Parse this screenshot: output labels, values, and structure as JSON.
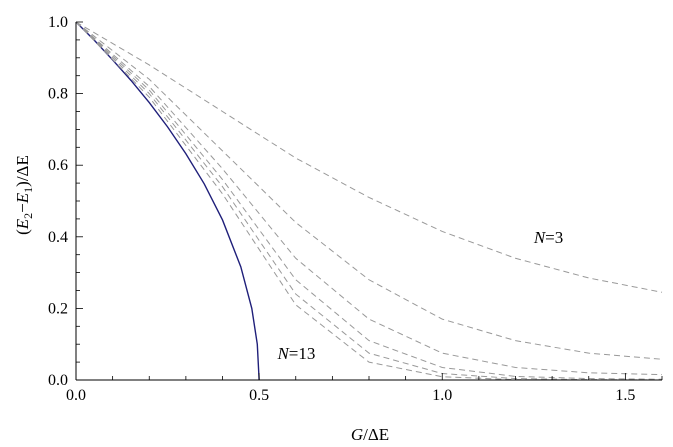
{
  "chart_data": {
    "type": "line",
    "title": "",
    "xlabel": {
      "var": "G",
      "rest": "/ΔE"
    },
    "ylabel": {
      "open": "(",
      "e2": "E",
      "sub2": "2",
      "minus": "−",
      "e1": "E",
      "sub1": "1",
      "close": ")/ΔE"
    },
    "xlim": [
      0,
      1.6
    ],
    "ylim": [
      0,
      1.0
    ],
    "xticks": [
      0.0,
      0.5,
      1.0,
      1.5
    ],
    "xtick_labels": [
      "0.0",
      "0.5",
      "1.0",
      "1.5"
    ],
    "yticks": [
      0.0,
      0.2,
      0.4,
      0.6,
      0.8,
      1.0
    ],
    "ytick_labels": [
      "0.0",
      "0.2",
      "0.4",
      "0.6",
      "0.8",
      "1.0"
    ],
    "grid": false,
    "series": [
      {
        "style": "solid",
        "color": "#1f1f7a",
        "x": [
          0,
          0.05,
          0.1,
          0.15,
          0.2,
          0.25,
          0.3,
          0.35,
          0.4,
          0.45,
          0.48,
          0.495,
          0.5
        ],
        "y": [
          1.0,
          0.949,
          0.894,
          0.837,
          0.775,
          0.707,
          0.632,
          0.548,
          0.447,
          0.316,
          0.2,
          0.1,
          0.0
        ]
      },
      {
        "style": "dashed",
        "color": "#999999",
        "x": [
          0,
          0.2,
          0.4,
          0.6,
          0.8,
          1.0,
          1.2,
          1.4,
          1.6
        ],
        "y": [
          1.0,
          0.88,
          0.75,
          0.62,
          0.51,
          0.415,
          0.34,
          0.285,
          0.245
        ]
      },
      {
        "style": "dashed",
        "color": "#999999",
        "x": [
          0,
          0.2,
          0.4,
          0.6,
          0.8,
          1.0,
          1.2,
          1.4,
          1.6
        ],
        "y": [
          1.0,
          0.84,
          0.64,
          0.44,
          0.28,
          0.17,
          0.11,
          0.075,
          0.058
        ]
      },
      {
        "style": "dashed",
        "color": "#999999",
        "x": [
          0,
          0.2,
          0.4,
          0.6,
          0.8,
          1.0,
          1.2,
          1.4,
          1.6
        ],
        "y": [
          1.0,
          0.82,
          0.59,
          0.34,
          0.17,
          0.075,
          0.035,
          0.02,
          0.015
        ]
      },
      {
        "style": "dashed",
        "color": "#999999",
        "x": [
          0,
          0.2,
          0.4,
          0.6,
          0.8,
          1.0,
          1.2,
          1.4,
          1.6
        ],
        "y": [
          1.0,
          0.81,
          0.56,
          0.28,
          0.11,
          0.035,
          0.01,
          0.004,
          0.002
        ]
      },
      {
        "style": "dashed",
        "color": "#999999",
        "x": [
          0,
          0.2,
          0.4,
          0.6,
          0.8,
          1.0,
          1.2,
          1.4,
          1.6
        ],
        "y": [
          1.0,
          0.8,
          0.54,
          0.24,
          0.075,
          0.018,
          0.004,
          0.001,
          0.0
        ]
      },
      {
        "style": "dashed",
        "color": "#999999",
        "x": [
          0,
          0.2,
          0.4,
          0.6,
          0.8,
          1.0,
          1.2,
          1.4,
          1.6
        ],
        "y": [
          1.0,
          0.79,
          0.52,
          0.21,
          0.05,
          0.009,
          0.001,
          0.0,
          0.0
        ]
      }
    ],
    "annotations": [
      {
        "var": "N",
        "eq": "=3",
        "x": 1.25,
        "y": 0.4
      },
      {
        "var": "N",
        "eq": "=13",
        "x": 0.55,
        "y": 0.075
      }
    ]
  }
}
